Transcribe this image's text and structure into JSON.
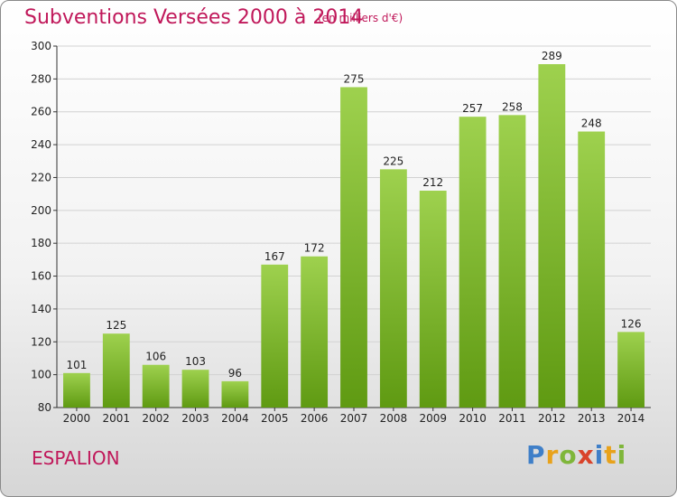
{
  "chart_data": {
    "type": "bar",
    "title": "Subventions Versées 2000 à 2014",
    "subtitle": "(en milliers d'€)",
    "categories": [
      "2000",
      "2001",
      "2002",
      "2003",
      "2004",
      "2005",
      "2006",
      "2007",
      "2008",
      "2009",
      "2010",
      "2011",
      "2012",
      "2013",
      "2014"
    ],
    "values": [
      101,
      125,
      106,
      103,
      96,
      167,
      172,
      275,
      225,
      212,
      257,
      258,
      289,
      248,
      126
    ],
    "ylim": [
      80,
      300
    ],
    "yticks": [
      80,
      100,
      120,
      140,
      160,
      180,
      200,
      220,
      240,
      260,
      280,
      300
    ],
    "grid": true,
    "bar_color_top": "#9ed14e",
    "bar_color_bottom": "#5f9a12"
  },
  "place_name": "ESPALION",
  "logo": {
    "text": "Proxiti",
    "letters": [
      {
        "ch": "P",
        "color": "#3f7fc8"
      },
      {
        "ch": "r",
        "color": "#e8a21b"
      },
      {
        "ch": "o",
        "color": "#7fb63a"
      },
      {
        "ch": "x",
        "color": "#d9432b"
      },
      {
        "ch": "i",
        "color": "#3f7fc8"
      },
      {
        "ch": "t",
        "color": "#e8a21b"
      },
      {
        "ch": "i",
        "color": "#7fb63a"
      }
    ]
  }
}
